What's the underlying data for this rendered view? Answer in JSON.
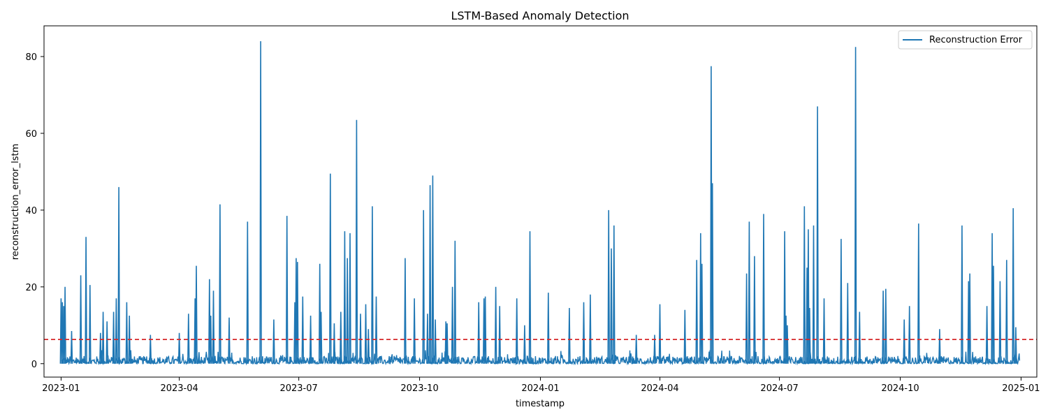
{
  "chart_data": {
    "type": "line",
    "title": "LSTM-Based Anomaly Detection",
    "xlabel": "timestamp",
    "ylabel": "reconstruction_error_lstm",
    "xlim": [
      "2022-12-19",
      "2025-01-13"
    ],
    "ylim": [
      -3.5,
      88
    ],
    "x_ticks": [
      "2023-01",
      "2023-04",
      "2023-07",
      "2023-10",
      "2024-01",
      "2024-04",
      "2024-07",
      "2024-10",
      "2025-01"
    ],
    "y_ticks": [
      0,
      20,
      40,
      60,
      80
    ],
    "grid": false,
    "legend": "top-right",
    "threshold": {
      "value": 6.3,
      "color": "#d62728",
      "style": "dashed"
    },
    "series": [
      {
        "name": "Reconstruction Error",
        "color": "#1f77b4",
        "baseline": [
          0,
          2
        ],
        "x": [
          "2023-01-01",
          "2023-01-02",
          "2023-01-03",
          "2023-01-04",
          "2023-01-09",
          "2023-01-16",
          "2023-01-20",
          "2023-01-23",
          "2023-01-31",
          "2023-02-01",
          "2023-02-02",
          "2023-02-05",
          "2023-02-10",
          "2023-02-12",
          "2023-02-14",
          "2023-02-20",
          "2023-02-22",
          "2023-02-23",
          "2023-03-10",
          "2023-04-01",
          "2023-04-08",
          "2023-04-13",
          "2023-04-14",
          "2023-04-16",
          "2023-04-24",
          "2023-04-25",
          "2023-04-27",
          "2023-05-02",
          "2023-05-09",
          "2023-05-23",
          "2023-06-02",
          "2023-06-12",
          "2023-06-22",
          "2023-06-28",
          "2023-06-29",
          "2023-06-30",
          "2023-07-04",
          "2023-07-10",
          "2023-07-17",
          "2023-07-18",
          "2023-07-25",
          "2023-07-28",
          "2023-08-02",
          "2023-08-05",
          "2023-08-07",
          "2023-08-09",
          "2023-08-14",
          "2023-08-17",
          "2023-08-21",
          "2023-08-23",
          "2023-08-26",
          "2023-08-29",
          "2023-09-20",
          "2023-09-27",
          "2023-10-04",
          "2023-10-07",
          "2023-10-09",
          "2023-10-11",
          "2023-10-13",
          "2023-10-21",
          "2023-10-22",
          "2023-10-26",
          "2023-10-28",
          "2023-11-15",
          "2023-11-19",
          "2023-11-20",
          "2023-11-28",
          "2023-12-01",
          "2023-12-14",
          "2023-12-20",
          "2023-12-24",
          "2024-01-07",
          "2024-01-23",
          "2024-02-03",
          "2024-02-08",
          "2024-02-22",
          "2024-02-24",
          "2024-02-26",
          "2024-03-14",
          "2024-03-28",
          "2024-04-01",
          "2024-04-20",
          "2024-04-29",
          "2024-05-02",
          "2024-05-03",
          "2024-05-10",
          "2024-05-11",
          "2024-06-06",
          "2024-06-08",
          "2024-06-12",
          "2024-06-19",
          "2024-07-05",
          "2024-07-06",
          "2024-07-07",
          "2024-07-20",
          "2024-07-22",
          "2024-07-23",
          "2024-07-24",
          "2024-07-27",
          "2024-07-30",
          "2024-08-04",
          "2024-08-17",
          "2024-08-22",
          "2024-08-28",
          "2024-08-31",
          "2024-09-18",
          "2024-09-20",
          "2024-10-04",
          "2024-10-08",
          "2024-10-15",
          "2024-10-31",
          "2024-11-17",
          "2024-11-22",
          "2024-11-23",
          "2024-12-06",
          "2024-12-10",
          "2024-12-11",
          "2024-12-16",
          "2024-12-21",
          "2024-12-26",
          "2024-12-28"
        ],
        "peaks": [
          17,
          16,
          15,
          20,
          8.5,
          23,
          33,
          20.5,
          8,
          3.5,
          13.5,
          11,
          13.5,
          17,
          46,
          16,
          12.5,
          3.5,
          7.5,
          8,
          13,
          17,
          25.5,
          3,
          22,
          12.5,
          19,
          41.5,
          12,
          37,
          84,
          11.5,
          38.5,
          16,
          27.5,
          26.5,
          17.5,
          12.5,
          26,
          13.5,
          49.5,
          10.5,
          13.5,
          34.5,
          27.5,
          34,
          63.5,
          13,
          15.5,
          9,
          41,
          17.5,
          27.5,
          17,
          40,
          13,
          46.5,
          49,
          11.5,
          11,
          10.5,
          20,
          32,
          16,
          17,
          17.5,
          20,
          15,
          17,
          10,
          34.5,
          18.5,
          14.5,
          16,
          18,
          40,
          30,
          36,
          7.5,
          7.5,
          15.5,
          14,
          27,
          34,
          26,
          77.5,
          47,
          23.5,
          37,
          28,
          39,
          34.5,
          12.5,
          10,
          41,
          25,
          35,
          14.5,
          36,
          67,
          17,
          32.5,
          21,
          82.5,
          13.5,
          19,
          19.5,
          11.5,
          15,
          36.5,
          9,
          36,
          21.5,
          23.5,
          15,
          34,
          25.5,
          21.5,
          27,
          40.5,
          9.5
        ]
      }
    ]
  }
}
